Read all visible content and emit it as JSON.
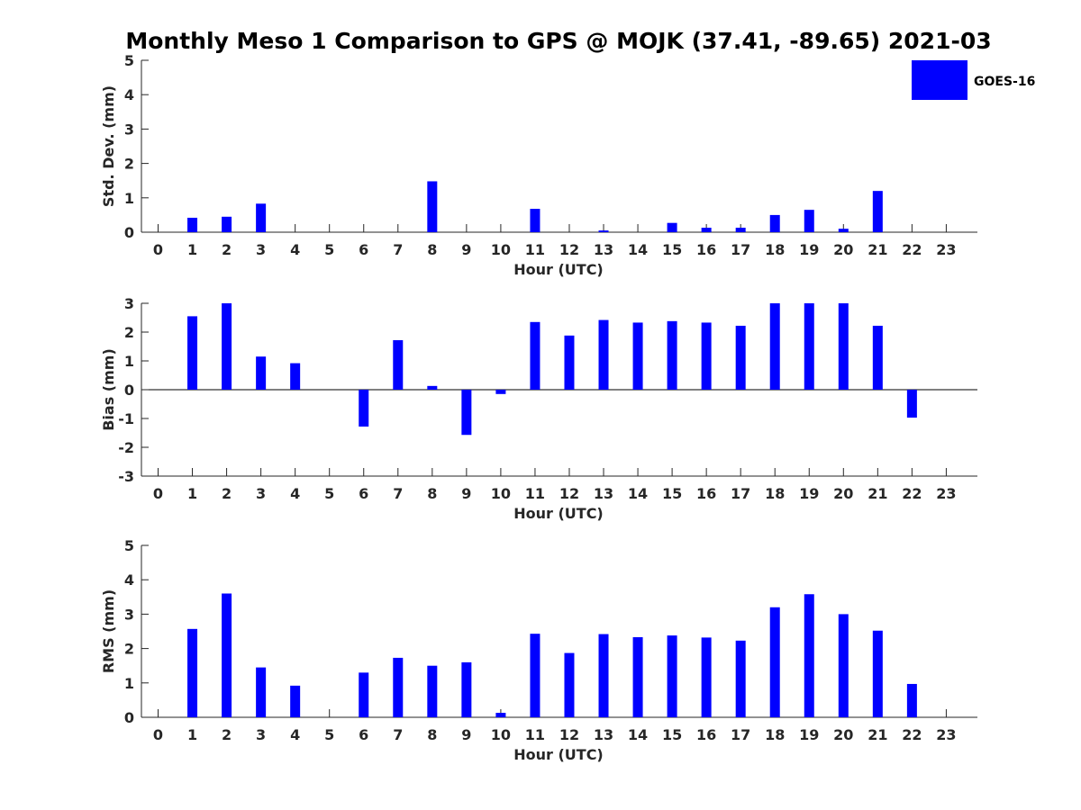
{
  "chart_data": {
    "type": "bar",
    "title": "Monthly Meso 1 Comparison to GPS @ MOJK (37.41, -89.65) 2021-03",
    "legend": {
      "label": "GOES-16",
      "placement": "top-right"
    },
    "bar_color": "#0000ff",
    "categories": [
      "0",
      "1",
      "2",
      "3",
      "4",
      "5",
      "6",
      "7",
      "8",
      "9",
      "10",
      "11",
      "12",
      "13",
      "14",
      "15",
      "16",
      "17",
      "18",
      "19",
      "20",
      "21",
      "22",
      "23"
    ],
    "panels": [
      {
        "id": "std",
        "ylabel": "Std. Dev. (mm)",
        "xlabel": "Hour (UTC)",
        "ylim": [
          0,
          5
        ],
        "yticks": [
          0,
          1,
          2,
          3,
          4,
          5
        ],
        "values": [
          null,
          0.42,
          0.45,
          0.83,
          null,
          null,
          null,
          null,
          1.48,
          null,
          null,
          0.68,
          null,
          0.05,
          null,
          0.27,
          0.13,
          0.13,
          0.5,
          0.65,
          0.1,
          1.2,
          null,
          null
        ]
      },
      {
        "id": "bias",
        "ylabel": "Bias (mm)",
        "xlabel": "Hour (UTC)",
        "ylim": [
          -3,
          3
        ],
        "yticks": [
          -3,
          -2,
          -1,
          0,
          1,
          2,
          3
        ],
        "values": [
          null,
          2.55,
          3.0,
          1.15,
          0.92,
          null,
          -1.28,
          1.72,
          0.13,
          -1.57,
          -0.15,
          2.35,
          1.88,
          2.42,
          2.33,
          2.38,
          2.33,
          2.22,
          3.0,
          3.0,
          3.0,
          2.22,
          -0.97,
          null
        ]
      },
      {
        "id": "rms",
        "ylabel": "RMS (mm)",
        "xlabel": "Hour (UTC)",
        "ylim": [
          0,
          5
        ],
        "yticks": [
          0,
          1,
          2,
          3,
          4,
          5
        ],
        "values": [
          null,
          2.57,
          3.6,
          1.45,
          0.92,
          null,
          1.3,
          1.73,
          1.5,
          1.6,
          0.13,
          2.43,
          1.87,
          2.42,
          2.33,
          2.38,
          2.32,
          2.23,
          3.2,
          3.58,
          3.0,
          2.52,
          0.97,
          null
        ]
      }
    ]
  }
}
